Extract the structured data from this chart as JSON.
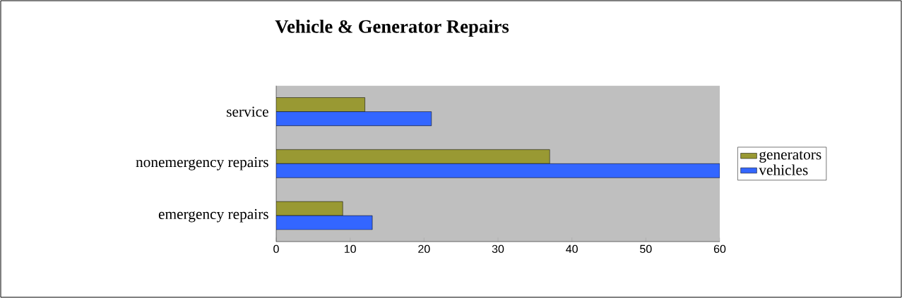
{
  "chart_data": {
    "type": "bar",
    "orientation": "horizontal",
    "title": "Vehicle & Generator Repairs",
    "categories": [
      "service",
      "nonemergency repairs",
      "emergency repairs"
    ],
    "series": [
      {
        "name": "generators",
        "color": "#999933",
        "values": [
          12,
          37,
          9
        ]
      },
      {
        "name": "vehicles",
        "color": "#3366ff",
        "values": [
          21,
          60,
          13
        ]
      }
    ],
    "xlim": [
      0,
      60
    ],
    "xticks": [
      0,
      10,
      20,
      30,
      40,
      50,
      60
    ],
    "grid": false,
    "legend": "right"
  }
}
